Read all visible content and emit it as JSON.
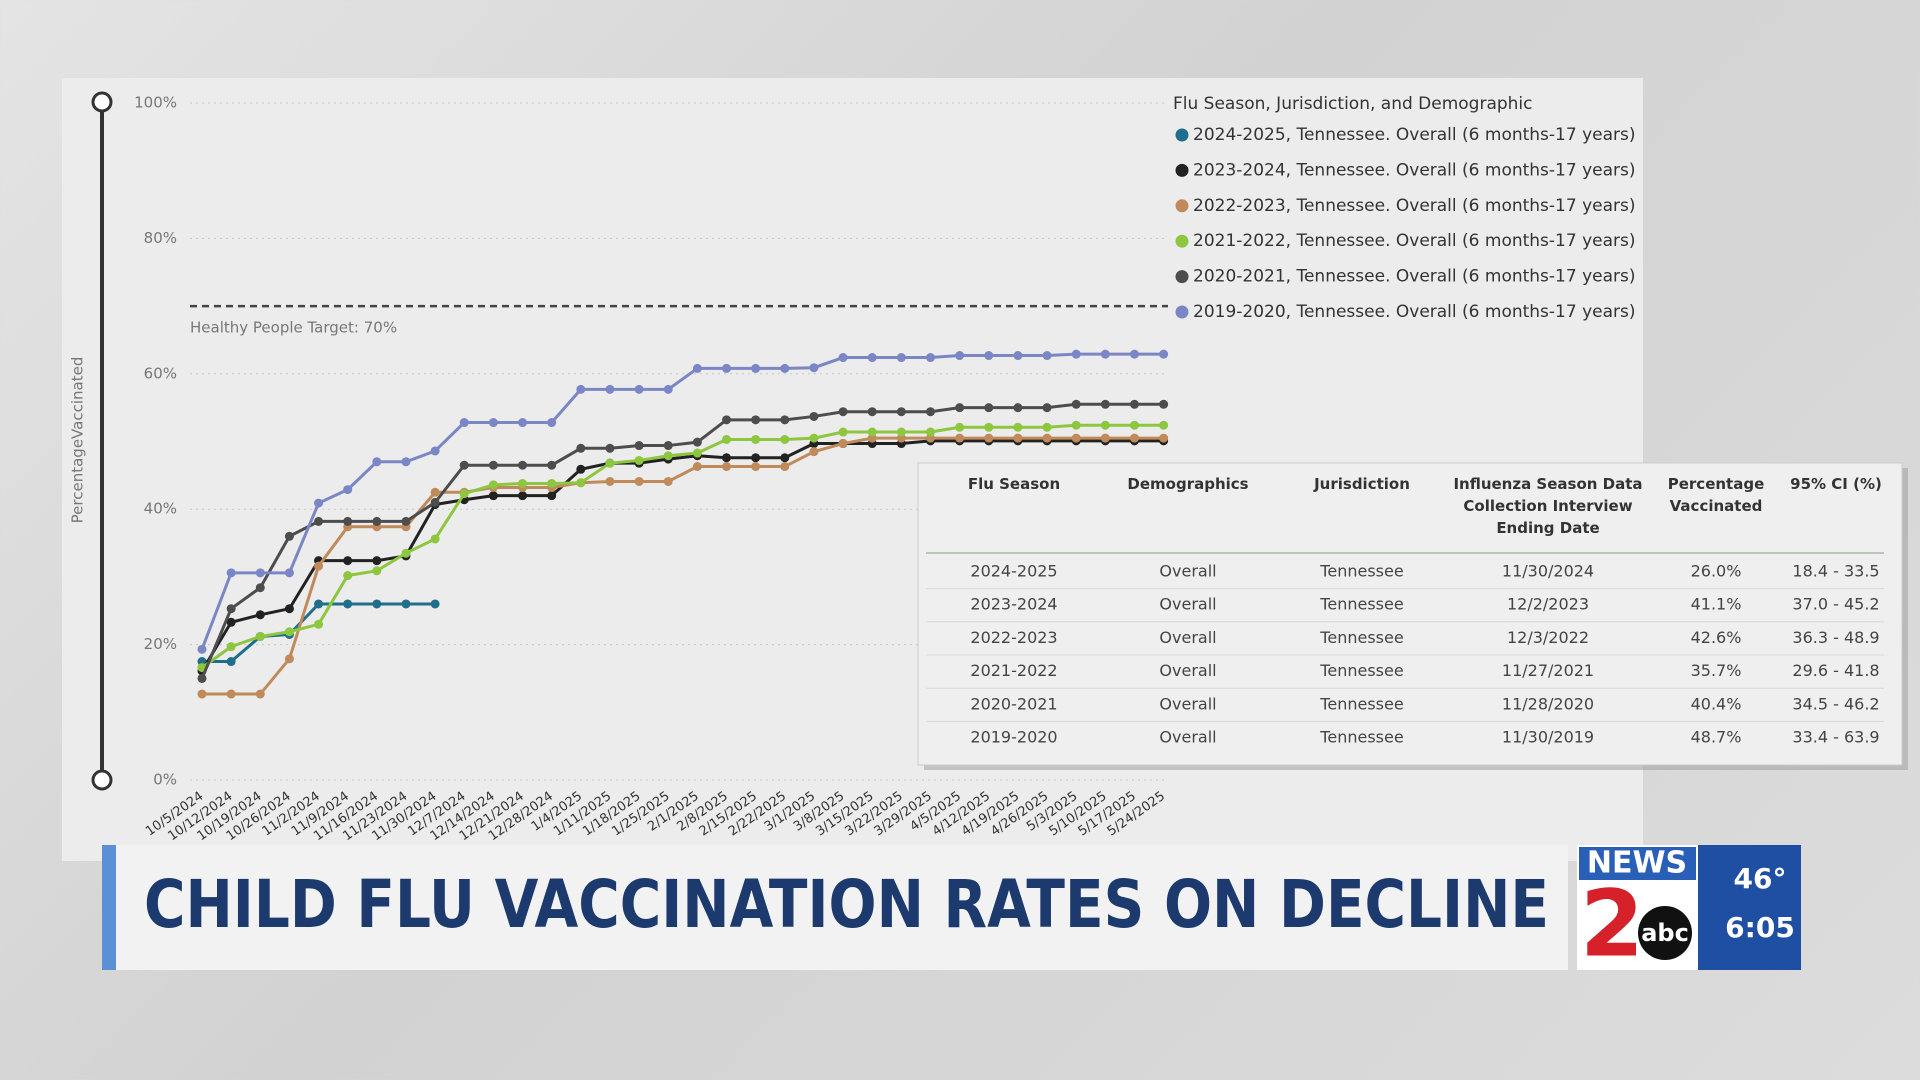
{
  "chart_data": {
    "type": "line",
    "y_label": "PercentageVaccinated",
    "legend_title": "Flu Season, Jurisdiction, and Demographic",
    "categories": [
      "10/5/2024",
      "10/12/2024",
      "10/19/2024",
      "10/26/2024",
      "11/2/2024",
      "11/9/2024",
      "11/16/2024",
      "11/23/2024",
      "11/30/2024",
      "12/7/2024",
      "12/14/2024",
      "12/21/2024",
      "12/28/2024",
      "1/4/2025",
      "1/11/2025",
      "1/18/2025",
      "1/25/2025",
      "2/1/2025",
      "2/8/2025",
      "2/15/2025",
      "2/22/2025",
      "3/1/2025",
      "3/8/2025",
      "3/15/2025",
      "3/22/2025",
      "3/29/2025",
      "4/5/2025",
      "4/12/2025",
      "4/19/2025",
      "4/26/2025",
      "5/3/2025",
      "5/10/2025",
      "5/17/2025",
      "5/24/2025"
    ],
    "ylim": [
      0,
      100
    ],
    "yticks": [
      {
        "value": 0,
        "label": "0%"
      },
      {
        "value": 20,
        "label": "20%"
      },
      {
        "value": 40,
        "label": "40%"
      },
      {
        "value": 60,
        "label": "60%"
      },
      {
        "value": 80,
        "label": "80%"
      },
      {
        "value": 100,
        "label": "100%"
      }
    ],
    "grid": true,
    "target": {
      "value": 70,
      "label": "Healthy People Target: 70%"
    },
    "series": [
      {
        "name": "2024-2025, Tennessee. Overall (6 months-17 years)",
        "color": "#1f6e8c",
        "values": [
          17.5,
          17.5,
          21.2,
          21.5,
          26.0,
          26.0,
          26.0,
          26.0,
          26.0,
          null,
          null,
          null,
          null,
          null,
          null,
          null,
          null,
          null,
          null,
          null,
          null,
          null,
          null,
          null,
          null,
          null,
          null,
          null,
          null,
          null,
          null,
          null,
          null,
          null
        ]
      },
      {
        "name": "2023-2024, Tennessee. Overall (6 months-17 years)",
        "color": "#222222",
        "values": [
          16.1,
          23.3,
          24.4,
          25.3,
          32.4,
          32.4,
          32.4,
          33.1,
          40.7,
          41.4,
          42.0,
          42.0,
          42.0,
          45.9,
          46.8,
          46.8,
          47.4,
          47.9,
          47.6,
          47.6,
          47.6,
          49.7,
          49.7,
          49.7,
          49.7,
          50.1,
          50.1,
          50.1,
          50.1,
          50.1,
          50.1,
          50.1,
          50.1,
          50.1
        ]
      },
      {
        "name": "2022-2023, Tennessee. Overall (6 months-17 years)",
        "color": "#c08a5a",
        "values": [
          12.7,
          12.7,
          12.7,
          17.9,
          31.6,
          37.4,
          37.4,
          37.4,
          42.5,
          42.5,
          43.2,
          43.2,
          43.2,
          43.9,
          44.1,
          44.1,
          44.1,
          46.3,
          46.3,
          46.3,
          46.3,
          48.5,
          49.7,
          50.5,
          50.5,
          50.5,
          50.5,
          50.5,
          50.5,
          50.5,
          50.5,
          50.5,
          50.5,
          50.5
        ]
      },
      {
        "name": "2021-2022, Tennessee. Overall (6 months-17 years)",
        "color": "#8dc63f",
        "values": [
          16.6,
          19.7,
          21.2,
          21.9,
          23.0,
          30.2,
          30.9,
          33.5,
          35.6,
          42.3,
          43.6,
          43.8,
          43.8,
          43.9,
          46.8,
          47.2,
          47.9,
          48.3,
          50.3,
          50.3,
          50.3,
          50.5,
          51.4,
          51.4,
          51.4,
          51.4,
          52.1,
          52.1,
          52.1,
          52.1,
          52.4,
          52.4,
          52.4,
          52.4
        ]
      },
      {
        "name": "2020-2021, Tennessee. Overall (6 months-17 years)",
        "color": "#4d4d4d",
        "values": [
          15.0,
          25.3,
          28.4,
          36.0,
          38.2,
          38.2,
          38.2,
          38.2,
          41.0,
          46.5,
          46.5,
          46.5,
          46.5,
          49.0,
          49.0,
          49.4,
          49.4,
          49.9,
          53.2,
          53.2,
          53.2,
          53.7,
          54.4,
          54.4,
          54.4,
          54.4,
          55.0,
          55.0,
          55.0,
          55.0,
          55.5,
          55.5,
          55.5,
          55.5
        ]
      },
      {
        "name": "2019-2020, Tennessee. Overall (6 months-17 years)",
        "color": "#7b86c6",
        "values": [
          19.3,
          30.6,
          30.6,
          30.6,
          40.9,
          42.9,
          47.0,
          47.0,
          48.6,
          52.8,
          52.8,
          52.8,
          52.8,
          57.7,
          57.7,
          57.7,
          57.7,
          60.8,
          60.8,
          60.8,
          60.8,
          60.9,
          62.4,
          62.4,
          62.4,
          62.4,
          62.7,
          62.7,
          62.7,
          62.7,
          62.9,
          62.9,
          62.9,
          62.9
        ]
      }
    ]
  },
  "table": {
    "columns": [
      "Flu Season",
      "Demographics",
      "Jurisdiction",
      "Influenza Season Data Collection Interview Ending Date",
      "Percentage Vaccinated",
      "95% CI (%)"
    ],
    "rows": [
      [
        "2024-2025",
        "Overall",
        "Tennessee",
        "11/30/2024",
        "26.0%",
        "18.4 - 33.5"
      ],
      [
        "2023-2024",
        "Overall",
        "Tennessee",
        "12/2/2023",
        "41.1%",
        "37.0 - 45.2"
      ],
      [
        "2022-2023",
        "Overall",
        "Tennessee",
        "12/3/2022",
        "42.6%",
        "36.3 - 48.9"
      ],
      [
        "2021-2022",
        "Overall",
        "Tennessee",
        "11/27/2021",
        "35.7%",
        "29.6 - 41.8"
      ],
      [
        "2020-2021",
        "Overall",
        "Tennessee",
        "11/28/2020",
        "40.4%",
        "34.5 - 46.2"
      ],
      [
        "2019-2020",
        "Overall",
        "Tennessee",
        "11/30/2019",
        "48.7%",
        "33.4 - 63.9"
      ]
    ]
  },
  "banner": {
    "headline": "CHILD FLU VACCINATION RATES ON DECLINE",
    "logo_news": "NEWS",
    "logo_number": "2",
    "logo_network": "abc",
    "temperature": "46°",
    "time": "6:05"
  }
}
